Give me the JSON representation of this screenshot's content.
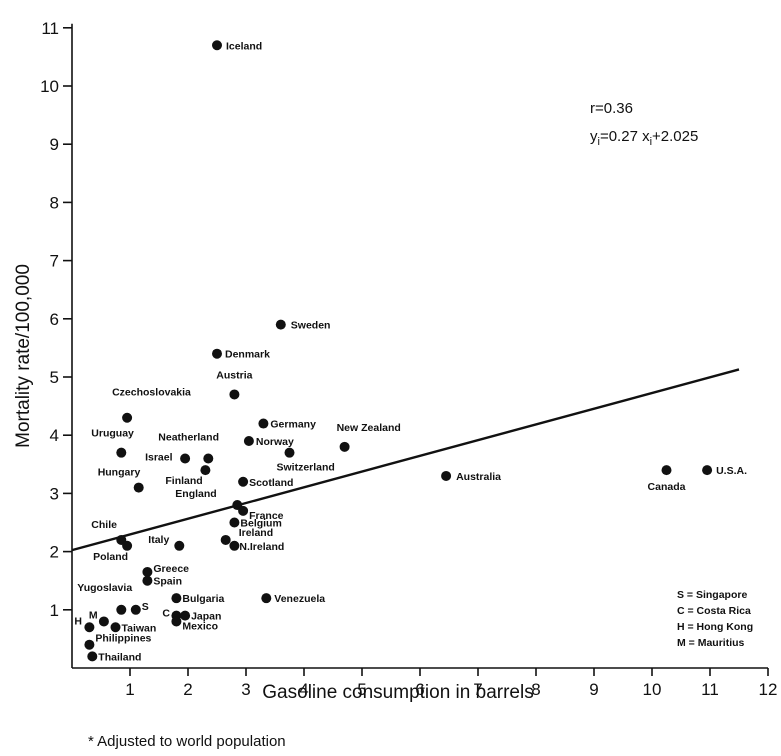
{
  "chart_data": {
    "type": "scatter",
    "title": "",
    "xlabel": "Gasoline consumption in barrels",
    "ylabel": "Mortality rate/100,000",
    "xlim": [
      0,
      12
    ],
    "ylim": [
      0,
      11
    ],
    "x_ticks": [
      "1",
      "2",
      "3",
      "4",
      "5",
      "6",
      "7",
      "8",
      "9",
      "10",
      "11",
      "12"
    ],
    "y_ticks": [
      "1",
      "2",
      "3",
      "4",
      "5",
      "6",
      "7",
      "8",
      "9",
      "10",
      "11"
    ],
    "grid": false,
    "annotations": {
      "r": "r=0.36",
      "equation": "y",
      "eq_sub1": "i",
      "eq_mid": "=0.27 x",
      "eq_sub2": "i",
      "eq_tail": "+2.025"
    },
    "regression": {
      "slope": 0.27,
      "intercept": 2.025,
      "x_range": [
        0,
        11.5
      ]
    },
    "points": [
      {
        "label": "Iceland",
        "x": 2.5,
        "y": 10.7
      },
      {
        "label": "Sweden",
        "x": 3.6,
        "y": 5.9
      },
      {
        "label": "Denmark",
        "x": 2.5,
        "y": 5.4
      },
      {
        "label": "Austria",
        "x": 2.8,
        "y": 4.7
      },
      {
        "label": "Czechoslovakia",
        "x": 0.95,
        "y": 4.3
      },
      {
        "label": "Germany",
        "x": 3.3,
        "y": 4.2
      },
      {
        "label": "Norway",
        "x": 3.05,
        "y": 3.9
      },
      {
        "label": "Neatherland",
        "x": 2.35,
        "y": 3.6
      },
      {
        "label": "Uruguay",
        "x": 0.85,
        "y": 3.7
      },
      {
        "label": "Israel",
        "x": 1.95,
        "y": 3.6
      },
      {
        "label": "Finland",
        "x": 2.3,
        "y": 3.4
      },
      {
        "label": "Switzerland",
        "x": 3.75,
        "y": 3.7
      },
      {
        "label": "New Zealand",
        "x": 4.7,
        "y": 3.8
      },
      {
        "label": "Hungary",
        "x": 1.15,
        "y": 3.1
      },
      {
        "label": "Scotland",
        "x": 2.95,
        "y": 3.2
      },
      {
        "label": "Australia",
        "x": 6.45,
        "y": 3.3
      },
      {
        "label": "Canada",
        "x": 10.25,
        "y": 3.4
      },
      {
        "label": "U.S.A.",
        "x": 10.95,
        "y": 3.4
      },
      {
        "label": "England",
        "x": 2.85,
        "y": 2.8
      },
      {
        "label": "France",
        "x": 2.95,
        "y": 2.7
      },
      {
        "label": "Belgium",
        "x": 2.8,
        "y": 2.5
      },
      {
        "label": "Chile",
        "x": 0.85,
        "y": 2.2
      },
      {
        "label": "Poland",
        "x": 0.95,
        "y": 2.1
      },
      {
        "label": "Italy",
        "x": 1.85,
        "y": 2.1
      },
      {
        "label": "Ireland",
        "x": 2.65,
        "y": 2.2
      },
      {
        "label": "N.Ireland",
        "x": 2.8,
        "y": 2.1
      },
      {
        "label": "Greece",
        "x": 1.3,
        "y": 1.65
      },
      {
        "label": "Spain",
        "x": 1.3,
        "y": 1.5
      },
      {
        "label": "Bulgaria",
        "x": 1.8,
        "y": 1.2
      },
      {
        "label": "Venezuela",
        "x": 3.35,
        "y": 1.2
      },
      {
        "label": "Yugoslavia",
        "x": 0.85,
        "y": 1.0
      },
      {
        "label": "S",
        "x": 1.1,
        "y": 1.0
      },
      {
        "label": "M",
        "x": 0.55,
        "y": 0.8
      },
      {
        "label": "C",
        "x": 1.8,
        "y": 0.9
      },
      {
        "label": "Japan",
        "x": 1.95,
        "y": 0.9
      },
      {
        "label": "Mexico",
        "x": 1.8,
        "y": 0.8
      },
      {
        "label": "H",
        "x": 0.3,
        "y": 0.7
      },
      {
        "label": "Taiwan",
        "x": 0.75,
        "y": 0.7
      },
      {
        "label": "Philippines",
        "x": 0.3,
        "y": 0.4
      },
      {
        "label": "Thailand",
        "x": 0.35,
        "y": 0.2
      }
    ],
    "key": [
      "S = Singapore",
      "C = Costa Rica",
      "H = Hong Kong",
      "M = Mauritius"
    ]
  },
  "footnote": "* Adjusted to world population"
}
